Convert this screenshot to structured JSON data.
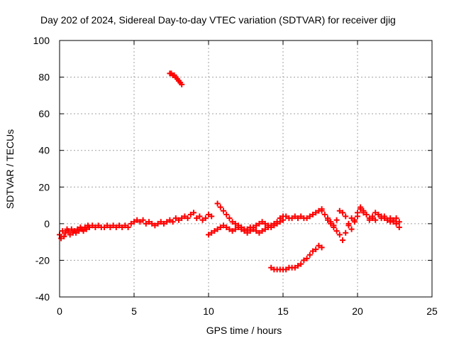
{
  "chart_data": {
    "type": "scatter",
    "title": "Day 202 of 2024, Sidereal Day-to-day VTEC variation (SDTVAR) for receiver djig",
    "xlabel": "GPS time / hours",
    "ylabel": "SDTVAR / TECUs",
    "xlim": [
      0,
      25
    ],
    "ylim": [
      -40,
      100
    ],
    "xticks": [
      0,
      5,
      10,
      15,
      20,
      25
    ],
    "yticks": [
      -40,
      -20,
      0,
      20,
      40,
      60,
      80,
      100
    ],
    "grid": true,
    "legend": "none",
    "marker": "plus",
    "color": "#ff0000",
    "series": [
      {
        "x": [
          0.0,
          0.1,
          0.2,
          0.3,
          0.4,
          0.5,
          0.6,
          0.7,
          0.8,
          0.9,
          1.0,
          1.1,
          1.2,
          1.3,
          1.4,
          1.5,
          1.6,
          1.7,
          1.8,
          1.9,
          2.0,
          2.2,
          2.4,
          2.6,
          2.8,
          3.0,
          3.2,
          3.4,
          3.6,
          3.8,
          4.0,
          4.2,
          4.4,
          4.6,
          4.8,
          5.0,
          5.2,
          5.4,
          5.6,
          5.8,
          6.0,
          6.2,
          6.4,
          6.6,
          6.8,
          7.0,
          7.2,
          7.4,
          7.6,
          7.8,
          8.0,
          8.2,
          8.4,
          8.6,
          8.8,
          9.0,
          9.2,
          9.4,
          9.6,
          9.8,
          10.0,
          10.2
        ],
        "y": [
          -6,
          -8,
          -4,
          -7,
          -5,
          -3,
          -4,
          -6,
          -3,
          -5,
          -4,
          -5,
          -3,
          -4,
          -2,
          -3,
          -4,
          -2,
          -3,
          -1,
          -2,
          -1,
          -2,
          -1,
          -2,
          -2,
          -1,
          -2,
          -1,
          -2,
          -1,
          -2,
          -1,
          -2,
          0,
          1,
          2,
          1,
          2,
          0,
          1,
          0,
          -1,
          0,
          1,
          0,
          1,
          2,
          1,
          3,
          2,
          3,
          4,
          3,
          5,
          6,
          3,
          4,
          2,
          3,
          5,
          4
        ]
      },
      {
        "x": [
          7.4,
          7.5,
          7.6,
          7.7,
          7.8,
          7.9,
          8.0,
          8.1,
          8.2
        ],
        "y": [
          82,
          82,
          81,
          81,
          80,
          79,
          78,
          77,
          76
        ]
      },
      {
        "x": [
          10.0,
          10.2,
          10.4,
          10.6,
          10.8,
          11.0,
          11.2,
          11.4,
          11.6,
          11.8,
          12.0,
          12.2,
          12.4,
          12.6,
          12.8,
          13.0,
          13.2,
          13.4,
          13.6,
          13.8,
          14.0,
          14.2,
          14.4,
          14.6
        ],
        "y": [
          -6,
          -5,
          -4,
          -3,
          -2,
          -1,
          -2,
          -3,
          -4,
          -3,
          -2,
          -3,
          -4,
          -5,
          -4,
          -3,
          -4,
          -5,
          -4,
          -3,
          -2,
          -1,
          0,
          1
        ]
      },
      {
        "x": [
          10.6,
          10.8,
          11.0,
          11.2,
          11.4,
          11.6,
          11.8,
          12.0,
          12.2,
          12.4,
          12.6,
          12.8,
          13.0,
          13.2,
          13.4,
          13.6,
          13.8,
          14.0,
          14.2,
          14.4,
          14.6,
          14.8,
          15.0
        ],
        "y": [
          11,
          9,
          7,
          5,
          3,
          1,
          0,
          -1,
          -2,
          -3,
          -3,
          -2,
          -2,
          -1,
          0,
          1,
          0,
          -1,
          -2,
          -1,
          0,
          1,
          2
        ]
      },
      {
        "x": [
          14.2,
          14.4,
          14.6,
          14.8,
          15.0,
          15.2,
          15.4,
          15.6,
          15.8,
          16.0,
          16.2,
          16.4,
          16.6,
          16.8,
          17.0,
          17.2,
          17.4,
          17.6
        ],
        "y": [
          -24,
          -25,
          -25,
          -25,
          -25,
          -25,
          -24,
          -24,
          -24,
          -23,
          -22,
          -20,
          -19,
          -17,
          -15,
          -14,
          -12,
          -13
        ]
      },
      {
        "x": [
          14.8,
          15.0,
          15.2,
          15.4,
          15.6,
          15.8,
          16.0,
          16.2,
          16.4,
          16.6,
          16.8,
          17.0,
          17.2,
          17.4,
          17.6
        ],
        "y": [
          3,
          4,
          4,
          3,
          3,
          4,
          3,
          4,
          3,
          3,
          4,
          5,
          6,
          7,
          8
        ]
      },
      {
        "x": [
          17.6,
          17.8,
          18.0,
          18.2,
          18.4,
          18.6,
          18.8,
          19.0,
          19.2,
          19.4,
          19.6,
          19.8,
          20.0,
          20.2,
          20.4,
          20.6,
          20.8,
          21.0,
          21.2,
          21.4,
          21.6,
          21.8,
          22.0,
          22.2,
          22.4,
          22.6,
          22.8
        ],
        "y": [
          7,
          5,
          2,
          0,
          -2,
          -4,
          -6,
          -9,
          -5,
          0,
          3,
          2,
          4,
          8,
          6,
          5,
          3,
          4,
          2,
          5,
          4,
          3,
          2,
          1,
          2,
          0,
          -2
        ]
      },
      {
        "x": [
          18.0,
          18.2,
          18.4,
          18.6,
          18.8,
          19.0,
          19.2,
          19.4,
          19.6,
          19.8,
          20.0,
          20.2,
          20.4,
          20.6,
          20.8,
          21.0,
          21.2,
          21.4,
          21.6,
          21.8,
          22.0,
          22.2,
          22.4,
          22.6,
          22.8
        ],
        "y": [
          3,
          1,
          -1,
          2,
          7,
          6,
          4,
          -1,
          -3,
          1,
          6,
          9,
          7,
          5,
          2,
          3,
          6,
          5,
          3,
          4,
          2,
          3,
          1,
          3,
          1
        ]
      }
    ]
  }
}
